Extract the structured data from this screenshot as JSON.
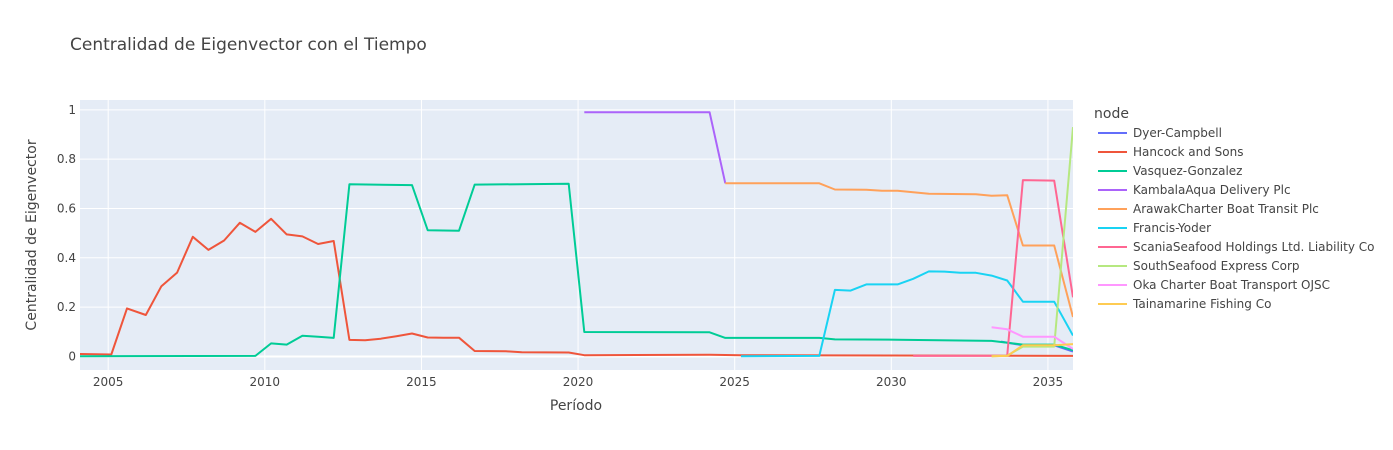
{
  "chart_data": {
    "type": "line",
    "title": "Centralidad de Eigenvector con el Tiempo",
    "xlabel": "Período",
    "ylabel": "Centralidad de Eigenvector",
    "xlim": [
      2004.1,
      2035.8
    ],
    "ylim": [
      -0.055,
      1.04
    ],
    "x_ticks": [
      2005,
      2010,
      2015,
      2020,
      2025,
      2030,
      2035
    ],
    "y_ticks": [
      0,
      0.2,
      0.4,
      0.6,
      0.8,
      1
    ],
    "y_tick_labels": [
      "0",
      "0.2",
      "0.4",
      "0.6",
      "0.8",
      "1"
    ],
    "grid": true,
    "legend": {
      "title": "node",
      "placement": "right"
    },
    "series": [
      {
        "name": "Dyer-Campbell",
        "color": "#636efa",
        "points": [
          [
            2033.5,
            0.06
          ],
          [
            2034.2,
            0.045
          ],
          [
            2035.2,
            0.045
          ],
          [
            2035.8,
            0.02
          ]
        ]
      },
      {
        "name": "Hancock and Sons",
        "color": "#ef553b",
        "points": [
          [
            2004.1,
            0.01
          ],
          [
            2005.1,
            0.008
          ],
          [
            2005.6,
            0.195
          ],
          [
            2006.2,
            0.168
          ],
          [
            2006.7,
            0.285
          ],
          [
            2007.2,
            0.34
          ],
          [
            2007.7,
            0.485
          ],
          [
            2008.2,
            0.432
          ],
          [
            2008.7,
            0.47
          ],
          [
            2009.2,
            0.542
          ],
          [
            2009.7,
            0.505
          ],
          [
            2010.2,
            0.558
          ],
          [
            2010.7,
            0.495
          ],
          [
            2011.2,
            0.487
          ],
          [
            2011.7,
            0.456
          ],
          [
            2012.2,
            0.468
          ],
          [
            2012.7,
            0.067
          ],
          [
            2013.2,
            0.066
          ],
          [
            2013.7,
            0.072
          ],
          [
            2014.2,
            0.082
          ],
          [
            2014.7,
            0.093
          ],
          [
            2015.2,
            0.077
          ],
          [
            2015.7,
            0.076
          ],
          [
            2016.2,
            0.076
          ],
          [
            2016.7,
            0.022
          ],
          [
            2017.7,
            0.021
          ],
          [
            2018.2,
            0.017
          ],
          [
            2019.7,
            0.016
          ],
          [
            2020.2,
            0.005
          ],
          [
            2024.2,
            0.007
          ],
          [
            2025.2,
            0.005
          ],
          [
            2035.8,
            0.002
          ]
        ]
      },
      {
        "name": "Vasquez-Gonzalez",
        "color": "#00cc96",
        "points": [
          [
            2004.1,
            0.001
          ],
          [
            2009.7,
            0.002
          ],
          [
            2010.2,
            0.053
          ],
          [
            2010.7,
            0.048
          ],
          [
            2011.2,
            0.084
          ],
          [
            2011.7,
            0.08
          ],
          [
            2012.2,
            0.075
          ],
          [
            2012.7,
            0.698
          ],
          [
            2014.7,
            0.695
          ],
          [
            2015.2,
            0.512
          ],
          [
            2016.2,
            0.51
          ],
          [
            2016.7,
            0.697
          ],
          [
            2019.7,
            0.7
          ],
          [
            2020.2,
            0.099
          ],
          [
            2024.2,
            0.098
          ],
          [
            2024.7,
            0.075
          ],
          [
            2027.7,
            0.075
          ],
          [
            2028.2,
            0.069
          ],
          [
            2030.2,
            0.068
          ],
          [
            2033.2,
            0.063
          ],
          [
            2034.2,
            0.048
          ],
          [
            2035.2,
            0.048
          ],
          [
            2035.8,
            0.025
          ]
        ]
      },
      {
        "name": "KambalaAqua Delivery Plc",
        "color": "#ab63fa",
        "points": [
          [
            2020.2,
            0.99
          ],
          [
            2024.2,
            0.99
          ],
          [
            2024.7,
            0.702
          ]
        ]
      },
      {
        "name": "ArawakCharter Boat Transit Plc",
        "color": "#ffa15a",
        "points": [
          [
            2024.7,
            0.702
          ],
          [
            2027.7,
            0.702
          ],
          [
            2028.2,
            0.677
          ],
          [
            2029.2,
            0.676
          ],
          [
            2029.7,
            0.672
          ],
          [
            2030.2,
            0.672
          ],
          [
            2031.2,
            0.66
          ],
          [
            2032.7,
            0.658
          ],
          [
            2033.2,
            0.652
          ],
          [
            2033.7,
            0.654
          ],
          [
            2034.2,
            0.45
          ],
          [
            2035.2,
            0.45
          ],
          [
            2035.8,
            0.16
          ]
        ]
      },
      {
        "name": "Francis-Yoder",
        "color": "#19d3f3",
        "points": [
          [
            2025.2,
            0.001
          ],
          [
            2027.7,
            0.002
          ],
          [
            2028.2,
            0.27
          ],
          [
            2028.7,
            0.267
          ],
          [
            2029.2,
            0.292
          ],
          [
            2030.2,
            0.292
          ],
          [
            2030.7,
            0.315
          ],
          [
            2031.2,
            0.345
          ],
          [
            2031.7,
            0.344
          ],
          [
            2032.2,
            0.339
          ],
          [
            2032.7,
            0.339
          ],
          [
            2033.2,
            0.328
          ],
          [
            2033.7,
            0.308
          ],
          [
            2034.2,
            0.222
          ],
          [
            2035.2,
            0.222
          ],
          [
            2035.8,
            0.085
          ]
        ]
      },
      {
        "name": "ScaniaSeafood Holdings Ltd. Liability Co",
        "color": "#ff6692",
        "points": [
          [
            2030.7,
            0.002
          ],
          [
            2033.7,
            0.003
          ],
          [
            2034.2,
            0.715
          ],
          [
            2035.2,
            0.713
          ],
          [
            2035.8,
            0.24
          ]
        ]
      },
      {
        "name": "SouthSeafood Express Corp",
        "color": "#b6e880",
        "points": [
          [
            2033.2,
            0.001
          ],
          [
            2033.7,
            0.003
          ],
          [
            2034.2,
            0.04
          ],
          [
            2035.2,
            0.04
          ],
          [
            2035.8,
            0.93
          ]
        ]
      },
      {
        "name": "Oka Charter Boat Transport OJSC",
        "color": "#ff97ff",
        "points": [
          [
            2033.2,
            0.118
          ],
          [
            2033.7,
            0.11
          ],
          [
            2034.2,
            0.08
          ],
          [
            2035.2,
            0.08
          ],
          [
            2035.8,
            0.03
          ]
        ]
      },
      {
        "name": "Tainamarine Fishing Co",
        "color": "#fecb52",
        "points": [
          [
            2033.2,
            0.001
          ],
          [
            2033.7,
            0.002
          ],
          [
            2034.2,
            0.045
          ],
          [
            2035.2,
            0.045
          ],
          [
            2035.8,
            0.05
          ]
        ]
      }
    ]
  }
}
